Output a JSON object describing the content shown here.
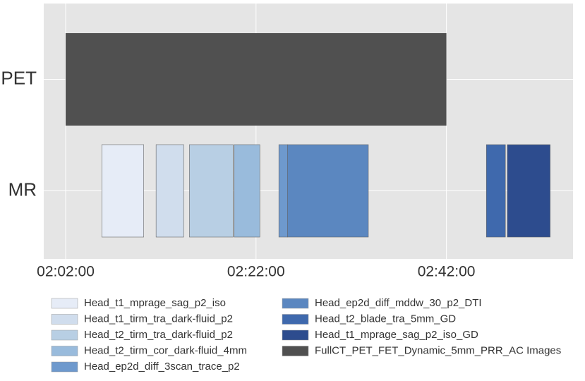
{
  "chart_data": {
    "type": "gantt",
    "categories": [
      "PET",
      "MR"
    ],
    "xlim": [
      119.7,
      175.3
    ],
    "xticks": [
      {
        "value": 122,
        "label": "02:02:00"
      },
      {
        "value": 142,
        "label": "02:22:00"
      },
      {
        "value": 162,
        "label": "02:42:00"
      }
    ],
    "grid": true,
    "series": [
      {
        "name": "Head_t1_mprage_sag_p2_iso",
        "color": "#e6ecf7",
        "category": "MR",
        "values": [
          125.8,
          130.2
        ]
      },
      {
        "name": "Head_t1_tirm_tra_dark-fluid_p2",
        "color": "#d0dded",
        "category": "MR",
        "values": [
          131.5,
          134.4
        ]
      },
      {
        "name": "Head_t2_tirm_tra_dark-fluid_p2",
        "color": "#b8cfe4",
        "category": "MR",
        "values": [
          135.0,
          139.6
        ]
      },
      {
        "name": "Head_t2_tirm_cor_dark-fluid_4mm",
        "color": "#99bbdc",
        "category": "MR",
        "values": [
          139.7,
          142.4
        ]
      },
      {
        "name": "Head_ep2d_diff_3scan_trace_p2",
        "color": "#6e99cd",
        "category": "MR",
        "values": [
          144.4,
          145.3
        ]
      },
      {
        "name": "Head_ep2d_diff_mddw_30_p2_DTI",
        "color": "#5b87c0",
        "category": "MR",
        "values": [
          145.3,
          153.8
        ]
      },
      {
        "name": "Head_t2_blade_tra_5mm_GD",
        "color": "#3f69ad",
        "category": "MR",
        "values": [
          166.2,
          168.2
        ]
      },
      {
        "name": "Head_t1_mprage_sag_p2_iso_GD",
        "color": "#2d4c8e",
        "category": "MR",
        "values": [
          168.4,
          172.9
        ]
      },
      {
        "name": "FullCT_PET_FET_Dynamic_5mm_PRR_AC Images",
        "color": "#505050",
        "category": "PET",
        "values": [
          122,
          162
        ]
      }
    ]
  }
}
